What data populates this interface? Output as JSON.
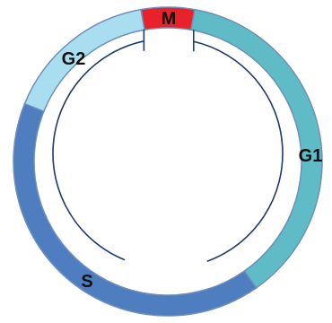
{
  "diagram": {
    "phases": [
      {
        "id": "m",
        "label": "M",
        "color": "#e8212b"
      },
      {
        "id": "g1",
        "label": "G1",
        "color": "#5fbcc6"
      },
      {
        "id": "s",
        "label": "S",
        "color": "#4f7ec0"
      },
      {
        "id": "g2",
        "label": "G2",
        "color": "#a9def0"
      }
    ],
    "ring_stroke": "#6e8fb8",
    "inner_line_color": "#1e3a6a"
  }
}
